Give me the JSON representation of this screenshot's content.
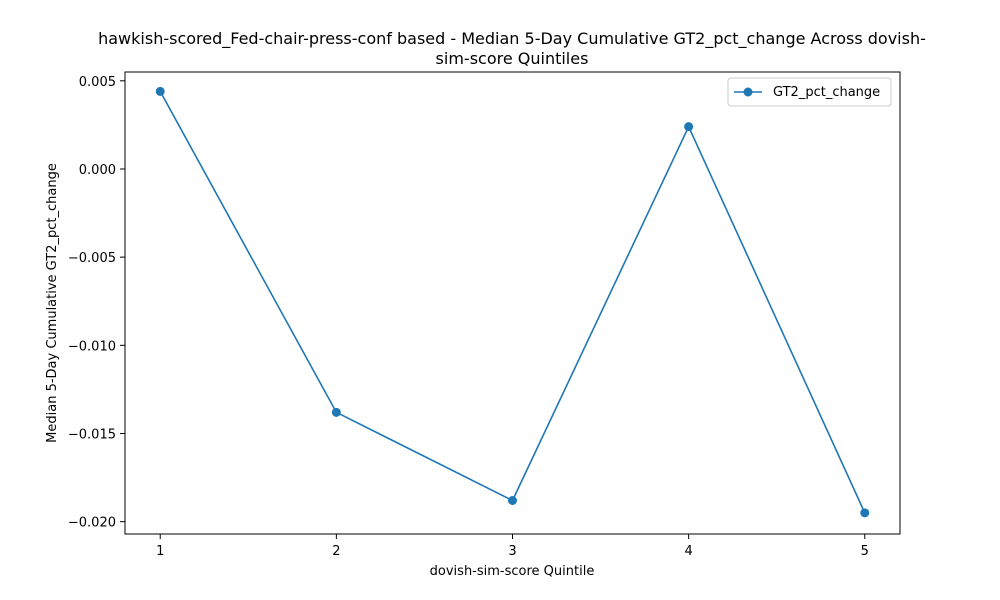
{
  "chart_data": {
    "type": "line",
    "title": "hawkish-scored_Fed-chair-press-conf based - Median 5-Day Cumulative GT2_pct_change Across dovish-sim-score Quintiles",
    "title_lines": [
      "hawkish-scored_Fed-chair-press-conf based - Median 5-Day Cumulative GT2_pct_change Across dovish-",
      "sim-score Quintiles"
    ],
    "xlabel": "dovish-sim-score Quintile",
    "ylabel": "Median 5-Day Cumulative GT2_pct_change",
    "x": [
      1,
      2,
      3,
      4,
      5
    ],
    "xticks": [
      "1",
      "2",
      "3",
      "4",
      "5"
    ],
    "yticks": [
      0.005,
      0.0,
      -0.005,
      -0.01,
      -0.015,
      -0.02
    ],
    "ytick_labels": [
      "0.005",
      "0.000",
      "−0.005",
      "−0.010",
      "−0.015",
      "−0.020"
    ],
    "xlim": [
      0.8,
      5.2
    ],
    "ylim": [
      -0.0207,
      0.0055
    ],
    "series": [
      {
        "name": "GT2_pct_change",
        "values": [
          0.0044,
          -0.0138,
          -0.0188,
          0.0024,
          -0.0195
        ],
        "color": "#1f77b4",
        "marker": "circle"
      }
    ],
    "legend_position": "top-right",
    "grid": false
  }
}
